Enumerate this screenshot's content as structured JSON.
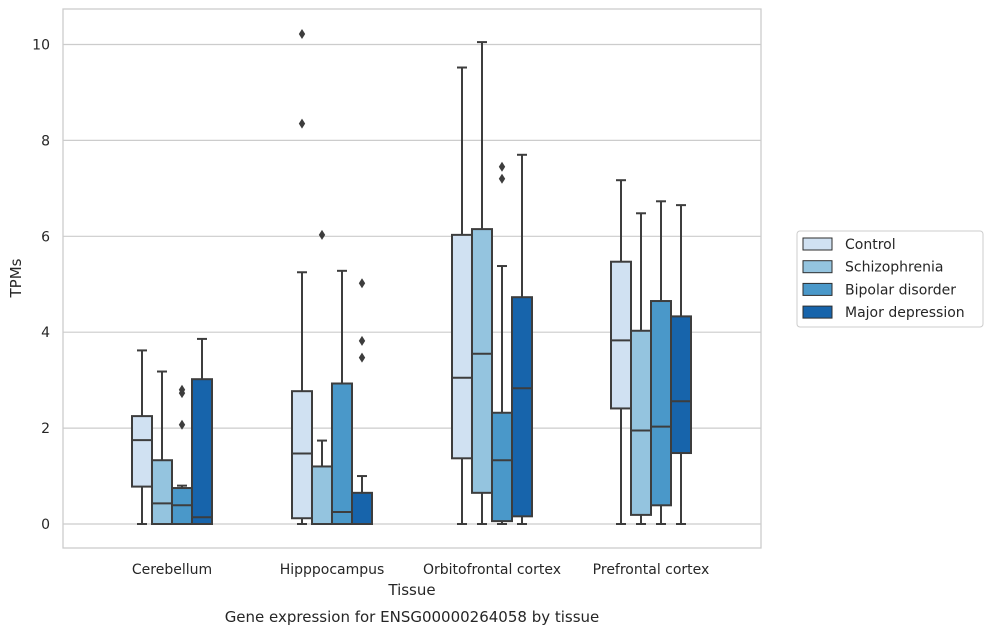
{
  "chart_data": {
    "type": "boxplot",
    "title": "",
    "caption": "Gene expression for ENSG00000264058 by tissue",
    "xlabel": "Tissue",
    "ylabel": "TPMs",
    "ylim": [
      -0.5,
      10.7
    ],
    "yticks": [
      0,
      2,
      4,
      6,
      8,
      10
    ],
    "grid": "horizontal",
    "legend_position": "right",
    "categories": [
      "Cerebellum",
      "Hipppocampus",
      "Orbitofrontal cortex",
      "Prefrontal cortex"
    ],
    "series": [
      {
        "name": "Control",
        "color": "#d0e1f2",
        "boxes": [
          {
            "whislo": 0.0,
            "q1": 0.78,
            "med": 1.75,
            "q3": 2.25,
            "whishi": 3.62,
            "fliers": []
          },
          {
            "whislo": 0.0,
            "q1": 0.12,
            "med": 1.47,
            "q3": 2.77,
            "whishi": 5.25,
            "fliers": [
              8.35,
              10.22
            ]
          },
          {
            "whislo": 0.0,
            "q1": 1.37,
            "med": 3.05,
            "q3": 6.03,
            "whishi": 9.52,
            "fliers": []
          },
          {
            "whislo": 0.0,
            "q1": 2.41,
            "med": 3.83,
            "q3": 5.47,
            "whishi": 7.17,
            "fliers": []
          }
        ]
      },
      {
        "name": "Schizophrenia",
        "color": "#94c4df",
        "boxes": [
          {
            "whislo": 0.0,
            "q1": 0.0,
            "med": 0.43,
            "q3": 1.33,
            "whishi": 3.18,
            "fliers": []
          },
          {
            "whislo": 0.0,
            "q1": 0.0,
            "med": 0.0,
            "q3": 1.2,
            "whishi": 1.74,
            "fliers": [
              6.03
            ]
          },
          {
            "whislo": 0.0,
            "q1": 0.65,
            "med": 3.55,
            "q3": 6.15,
            "whishi": 10.05,
            "fliers": []
          },
          {
            "whislo": 0.0,
            "q1": 0.19,
            "med": 1.95,
            "q3": 4.03,
            "whishi": 6.48,
            "fliers": []
          }
        ]
      },
      {
        "name": "Bipolar disorder",
        "color": "#4a98c9",
        "boxes": [
          {
            "whislo": 0.0,
            "q1": 0.0,
            "med": 0.39,
            "q3": 0.75,
            "whishi": 0.8,
            "fliers": [
              2.07,
              2.73,
              2.8
            ]
          },
          {
            "whislo": 0.0,
            "q1": 0.0,
            "med": 0.25,
            "q3": 2.93,
            "whishi": 5.28,
            "fliers": []
          },
          {
            "whislo": 0.0,
            "q1": 0.06,
            "med": 1.33,
            "q3": 2.32,
            "whishi": 5.38,
            "fliers": [
              7.2,
              7.45
            ]
          },
          {
            "whislo": 0.0,
            "q1": 0.39,
            "med": 2.03,
            "q3": 4.65,
            "whishi": 6.73,
            "fliers": []
          }
        ]
      },
      {
        "name": "Major depression",
        "color": "#1764ab",
        "boxes": [
          {
            "whislo": 0.0,
            "q1": 0.0,
            "med": 0.14,
            "q3": 3.02,
            "whishi": 3.86,
            "fliers": []
          },
          {
            "whislo": 0.0,
            "q1": 0.0,
            "med": 0.0,
            "q3": 0.65,
            "whishi": 1.0,
            "fliers": [
              3.47,
              3.82,
              5.02
            ]
          },
          {
            "whislo": 0.0,
            "q1": 0.16,
            "med": 2.83,
            "q3": 4.73,
            "whishi": 7.7,
            "fliers": []
          },
          {
            "whislo": 0.0,
            "q1": 1.48,
            "med": 2.56,
            "q3": 4.33,
            "whishi": 6.65,
            "fliers": []
          }
        ]
      }
    ]
  }
}
